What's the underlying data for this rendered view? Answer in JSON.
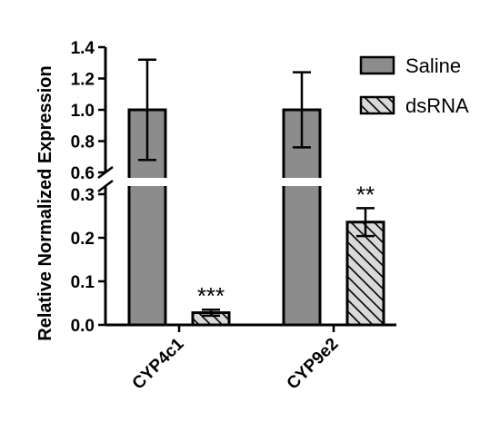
{
  "chart_data": {
    "type": "bar",
    "title": "",
    "xlabel": "",
    "ylabel": "Relative Normalized Expression",
    "categories": [
      "CYP4c1",
      "CYP9e2"
    ],
    "series": [
      {
        "name": "Saline",
        "values": [
          1.0,
          1.0
        ],
        "error": [
          0.32,
          0.24
        ],
        "fill": "#8c8c8c",
        "pattern": "solid"
      },
      {
        "name": "dsRNA",
        "values": [
          0.028,
          0.236
        ],
        "error": [
          0.007,
          0.032
        ],
        "fill": "#d9d9d9",
        "pattern": "diagonal-hatch"
      }
    ],
    "significance": [
      {
        "category": "CYP4c1",
        "series": "dsRNA",
        "label": "***"
      },
      {
        "category": "CYP9e2",
        "series": "dsRNA",
        "label": "**"
      }
    ],
    "y_axis_broken": true,
    "y_segments": [
      {
        "range": [
          0,
          0.3
        ],
        "ticks": [
          "0.0",
          "0.1",
          "0.2",
          "0.3"
        ]
      },
      {
        "range": [
          0.6,
          1.4
        ],
        "ticks": [
          "0.6",
          "0.8",
          "1.0",
          "1.2",
          "1.4"
        ]
      }
    ],
    "legend_position": "top-right",
    "grid": false,
    "colors": {
      "axis": "#000000",
      "saline": "#8c8c8c",
      "dsrna": "#d9d9d9",
      "hatch": "#000000"
    }
  }
}
